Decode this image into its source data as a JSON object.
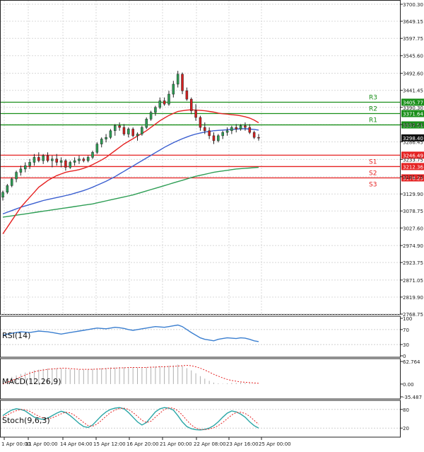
{
  "chart_data": {
    "type": "candlestick",
    "price_axis": {
      "ticks": [
        "3700.30",
        "3649.15",
        "3597.75",
        "3545.60",
        "3492.60",
        "3441.45",
        "3390.30",
        "3338.35",
        "3286.45",
        "3233.75",
        "3181.75",
        "3129.90",
        "3078.75",
        "3027.60",
        "2974.90",
        "2923.75",
        "2871.05",
        "2819.90",
        "2768.75"
      ],
      "range": [
        2768.75,
        3700.3
      ]
    },
    "time_axis": {
      "labels": [
        "1 Apr 00:00",
        "11 Apr 00:00",
        "14 Apr 04:00",
        "15 Apr 12:00",
        "16 Apr 20:00",
        "21 Apr 00:00",
        "22 Apr 08:00",
        "23 Apr 16:00",
        "25 Apr 00:00"
      ]
    },
    "levels": [
      {
        "name": "R3",
        "value": 3405.77,
        "label": "3405.77",
        "color": "#1a8f1a"
      },
      {
        "name": "R2",
        "value": 3371.64,
        "label": "3371.64",
        "color": "#1a8f1a"
      },
      {
        "name": "R1",
        "value": 3337.51,
        "label": "3337.51",
        "color": "#1a8f1a"
      },
      {
        "name": "S1",
        "value": 3246.49,
        "label": "3246.49",
        "color": "#e52222"
      },
      {
        "name": "S2",
        "value": 3212.36,
        "label": "3212.36",
        "color": "#e52222"
      },
      {
        "name": "S3",
        "value": 3178.23,
        "label": "3178.23",
        "color": "#e52222"
      }
    ],
    "current_price": {
      "value": 3298.4,
      "label": "3298.40"
    },
    "candles": [
      [
        3120,
        3140,
        3110,
        3135
      ],
      [
        3135,
        3160,
        3130,
        3155
      ],
      [
        3155,
        3180,
        3150,
        3175
      ],
      [
        3175,
        3200,
        3165,
        3195
      ],
      [
        3195,
        3215,
        3185,
        3205
      ],
      [
        3205,
        3225,
        3195,
        3215
      ],
      [
        3215,
        3235,
        3205,
        3225
      ],
      [
        3225,
        3250,
        3215,
        3240
      ],
      [
        3240,
        3255,
        3225,
        3230
      ],
      [
        3230,
        3250,
        3220,
        3245
      ],
      [
        3245,
        3255,
        3225,
        3230
      ],
      [
        3230,
        3245,
        3210,
        3235
      ],
      [
        3235,
        3250,
        3215,
        3225
      ],
      [
        3225,
        3240,
        3210,
        3230
      ],
      [
        3230,
        3235,
        3200,
        3210
      ],
      [
        3210,
        3230,
        3205,
        3225
      ],
      [
        3225,
        3240,
        3215,
        3230
      ],
      [
        3230,
        3245,
        3220,
        3235
      ],
      [
        3235,
        3240,
        3225,
        3230
      ],
      [
        3230,
        3245,
        3225,
        3240
      ],
      [
        3240,
        3260,
        3235,
        3255
      ],
      [
        3255,
        3285,
        3250,
        3280
      ],
      [
        3280,
        3300,
        3270,
        3295
      ],
      [
        3295,
        3310,
        3285,
        3300
      ],
      [
        3300,
        3325,
        3295,
        3320
      ],
      [
        3320,
        3340,
        3305,
        3335
      ],
      [
        3335,
        3345,
        3320,
        3330
      ],
      [
        3330,
        3340,
        3305,
        3310
      ],
      [
        3310,
        3330,
        3300,
        3325
      ],
      [
        3325,
        3330,
        3300,
        3305
      ],
      [
        3305,
        3315,
        3290,
        3310
      ],
      [
        3310,
        3335,
        3305,
        3330
      ],
      [
        3330,
        3360,
        3325,
        3355
      ],
      [
        3355,
        3380,
        3350,
        3375
      ],
      [
        3375,
        3395,
        3365,
        3390
      ],
      [
        3390,
        3420,
        3385,
        3410
      ],
      [
        3410,
        3420,
        3395,
        3400
      ],
      [
        3400,
        3440,
        3395,
        3430
      ],
      [
        3430,
        3470,
        3420,
        3460
      ],
      [
        3460,
        3500,
        3450,
        3490
      ],
      [
        3490,
        3495,
        3430,
        3440
      ],
      [
        3440,
        3450,
        3410,
        3415
      ],
      [
        3415,
        3420,
        3370,
        3380
      ],
      [
        3380,
        3400,
        3350,
        3360
      ],
      [
        3360,
        3365,
        3320,
        3330
      ],
      [
        3330,
        3345,
        3310,
        3320
      ],
      [
        3320,
        3330,
        3295,
        3305
      ],
      [
        3305,
        3315,
        3280,
        3290
      ],
      [
        3290,
        3310,
        3285,
        3305
      ],
      [
        3305,
        3320,
        3295,
        3315
      ],
      [
        3315,
        3330,
        3305,
        3320
      ],
      [
        3320,
        3335,
        3310,
        3330
      ],
      [
        3330,
        3340,
        3315,
        3325
      ],
      [
        3325,
        3340,
        3320,
        3335
      ],
      [
        3335,
        3345,
        3320,
        3330
      ],
      [
        3330,
        3340,
        3310,
        3315
      ],
      [
        3315,
        3320,
        3295,
        3300
      ],
      [
        3300,
        3310,
        3290,
        3298.4
      ]
    ],
    "ma_fast": [
      3010,
      3030,
      3050,
      3070,
      3090,
      3105,
      3120,
      3135,
      3150,
      3160,
      3170,
      3178,
      3185,
      3190,
      3195,
      3198,
      3200,
      3203,
      3207,
      3212,
      3218,
      3225,
      3232,
      3240,
      3250,
      3260,
      3270,
      3280,
      3288,
      3296,
      3304,
      3312,
      3320,
      3330,
      3340,
      3350,
      3358,
      3366,
      3372,
      3378,
      3380,
      3382,
      3383,
      3382,
      3381,
      3380,
      3378,
      3376,
      3373,
      3371,
      3370,
      3368,
      3367,
      3365,
      3362,
      3358,
      3352,
      3344
    ],
    "ma_mid": [
      3070,
      3075,
      3080,
      3085,
      3090,
      3094,
      3098,
      3102,
      3106,
      3110,
      3113,
      3116,
      3119,
      3122,
      3125,
      3128,
      3132,
      3136,
      3140,
      3145,
      3150,
      3156,
      3162,
      3168,
      3175,
      3182,
      3190,
      3198,
      3206,
      3214,
      3222,
      3230,
      3238,
      3246,
      3254,
      3262,
      3270,
      3277,
      3284,
      3290,
      3296,
      3301,
      3306,
      3310,
      3313,
      3316,
      3318,
      3320,
      3321,
      3322,
      3323,
      3324,
      3325,
      3326,
      3326,
      3325,
      3324,
      3322
    ],
    "ma_slow": [
      3060,
      3062,
      3064,
      3066,
      3068,
      3070,
      3072,
      3074,
      3076,
      3078,
      3080,
      3082,
      3084,
      3086,
      3088,
      3090,
      3092,
      3094,
      3096,
      3098,
      3100,
      3103,
      3106,
      3109,
      3112,
      3115,
      3118,
      3121,
      3124,
      3127,
      3131,
      3135,
      3139,
      3143,
      3147,
      3151,
      3155,
      3159,
      3163,
      3167,
      3171,
      3175,
      3179,
      3183,
      3186,
      3189,
      3192,
      3195,
      3197,
      3199,
      3201,
      3203,
      3205,
      3206,
      3207,
      3208,
      3209,
      3210
    ],
    "rsi": {
      "label": "RSI(14)",
      "ticks": [
        "100",
        "70",
        "30",
        "0"
      ],
      "values": [
        55,
        58,
        60,
        62,
        64,
        63,
        62,
        64,
        66,
        65,
        64,
        62,
        60,
        58,
        60,
        62,
        64,
        66,
        68,
        70,
        72,
        74,
        73,
        72,
        74,
        76,
        75,
        73,
        70,
        68,
        70,
        72,
        74,
        76,
        78,
        77,
        76,
        78,
        80,
        82,
        78,
        70,
        62,
        55,
        48,
        44,
        42,
        40,
        44,
        46,
        48,
        47,
        46,
        48,
        47,
        44,
        40,
        38
      ]
    },
    "macd": {
      "label": "MACD(12,26,9)",
      "ticks": [
        "62.764",
        "0.00",
        "-35.487"
      ],
      "hist": [
        10,
        15,
        20,
        24,
        28,
        32,
        35,
        38,
        40,
        42,
        43,
        44,
        44,
        43,
        42,
        41,
        40,
        40,
        40,
        41,
        42,
        43,
        44,
        45,
        46,
        46,
        47,
        47,
        47,
        47,
        46,
        46,
        47,
        48,
        49,
        50,
        50,
        51,
        52,
        54,
        50,
        44,
        38,
        30,
        22,
        15,
        9,
        4,
        2,
        1,
        2,
        3,
        3,
        4,
        3,
        2,
        1,
        0
      ],
      "signal": [
        0,
        5,
        10,
        15,
        20,
        25,
        30,
        34,
        37,
        39,
        41,
        42,
        43,
        44,
        44,
        43,
        42,
        41,
        41,
        41,
        41,
        42,
        42,
        43,
        44,
        44,
        45,
        45,
        46,
        46,
        46,
        46,
        46,
        47,
        47,
        48,
        48,
        49,
        49,
        50,
        51,
        52,
        51,
        48,
        44,
        39,
        33,
        27,
        22,
        17,
        13,
        10,
        8,
        6,
        5,
        4,
        3,
        2
      ]
    },
    "stoch": {
      "label": "Stoch(9,6,3)",
      "ticks": [
        "80",
        "20"
      ],
      "k": [
        60,
        70,
        78,
        82,
        80,
        75,
        65,
        55,
        50,
        48,
        52,
        60,
        68,
        74,
        70,
        60,
        48,
        35,
        25,
        22,
        30,
        45,
        60,
        72,
        80,
        84,
        86,
        82,
        70,
        55,
        40,
        30,
        38,
        55,
        72,
        82,
        86,
        84,
        78,
        60,
        40,
        25,
        18,
        15,
        14,
        16,
        20,
        28,
        40,
        55,
        68,
        75,
        72,
        65,
        55,
        40,
        28,
        20
      ],
      "d": [
        55,
        62,
        70,
        76,
        80,
        79,
        74,
        66,
        58,
        52,
        50,
        53,
        59,
        66,
        71,
        69,
        61,
        50,
        38,
        28,
        26,
        33,
        45,
        58,
        70,
        78,
        83,
        84,
        80,
        70,
        58,
        45,
        38,
        42,
        55,
        68,
        80,
        85,
        84,
        76,
        62,
        45,
        30,
        20,
        16,
        15,
        17,
        21,
        28,
        38,
        50,
        62,
        70,
        71,
        67,
        58,
        45,
        32
      ]
    }
  }
}
